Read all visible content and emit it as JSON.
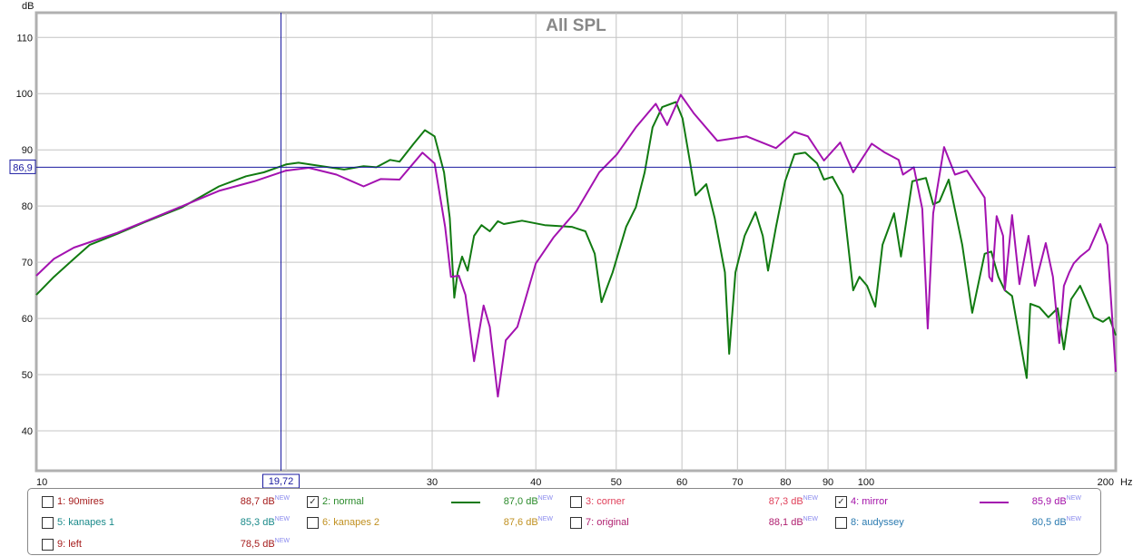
{
  "chart_data": {
    "type": "line",
    "title": "All SPL",
    "ylabel": "dB",
    "xlabel": "Hz",
    "xscale": "log",
    "xlim": [
      10,
      200
    ],
    "ylim": [
      32.9,
      114.4
    ],
    "grid": true,
    "y_ticks": [
      40,
      50,
      60,
      70,
      80,
      90,
      100,
      110
    ],
    "x_ticks": [
      10,
      30,
      40,
      50,
      60,
      70,
      80,
      90,
      100,
      200
    ],
    "x_gridlines": [
      20,
      30,
      40,
      50,
      60,
      70,
      80,
      90,
      100
    ],
    "x_unit_label": "Hz",
    "cursor": {
      "x_label": "19,72",
      "x_value": 19.72,
      "y_label": "86,9",
      "y_value": 86.9
    },
    "series": [
      {
        "name": "2: normal",
        "color": "#117a11",
        "points": [
          [
            10,
            64.2
          ],
          [
            10.5,
            67.4
          ],
          [
            11.1,
            70.6
          ],
          [
            11.6,
            73.1
          ],
          [
            12.5,
            75
          ],
          [
            13.5,
            77.1
          ],
          [
            15,
            79.8
          ],
          [
            16.6,
            83.5
          ],
          [
            17.9,
            85.3
          ],
          [
            18.8,
            86
          ],
          [
            20,
            87.4
          ],
          [
            20.7,
            87.7
          ],
          [
            22.1,
            87.1
          ],
          [
            23.5,
            86.5
          ],
          [
            24.8,
            87.1
          ],
          [
            25.7,
            86.9
          ],
          [
            26.7,
            88.2
          ],
          [
            27.4,
            87.9
          ],
          [
            28.5,
            91.1
          ],
          [
            29.4,
            93.5
          ],
          [
            30.2,
            92.4
          ],
          [
            31.0,
            86
          ],
          [
            31.5,
            77.9
          ],
          [
            31.9,
            63.7
          ],
          [
            32.2,
            68.2
          ],
          [
            32.6,
            71
          ],
          [
            33.1,
            68.5
          ],
          [
            33.7,
            74.7
          ],
          [
            34.4,
            76.6
          ],
          [
            35.2,
            75.5
          ],
          [
            36.0,
            77.3
          ],
          [
            36.6,
            76.8
          ],
          [
            38.5,
            77.4
          ],
          [
            41.0,
            76.6
          ],
          [
            44.2,
            76.3
          ],
          [
            45.9,
            75.5
          ],
          [
            47.1,
            71.5
          ],
          [
            48.0,
            62.9
          ],
          [
            49.5,
            68.2
          ],
          [
            51.4,
            76.3
          ],
          [
            52.8,
            79.8
          ],
          [
            54.1,
            86
          ],
          [
            55.3,
            94
          ],
          [
            56.8,
            97.6
          ],
          [
            59.0,
            98.5
          ],
          [
            60.1,
            95.6
          ],
          [
            61.4,
            87.6
          ],
          [
            62.3,
            81.9
          ],
          [
            64.2,
            83.9
          ],
          [
            65.7,
            77.9
          ],
          [
            67.6,
            68.2
          ],
          [
            68.4,
            53.7
          ],
          [
            69.6,
            68.2
          ],
          [
            71.4,
            74.7
          ],
          [
            73.6,
            78.9
          ],
          [
            75.1,
            74.7
          ],
          [
            76.2,
            68.5
          ],
          [
            77.9,
            76.3
          ],
          [
            79.9,
            84.4
          ],
          [
            82.0,
            89.2
          ],
          [
            84.5,
            89.5
          ],
          [
            87.3,
            87.6
          ],
          [
            89.0,
            84.7
          ],
          [
            91.1,
            85.2
          ],
          [
            93.7,
            81.9
          ],
          [
            96.5,
            65
          ],
          [
            98.2,
            67.4
          ],
          [
            100.3,
            65.8
          ],
          [
            102.6,
            62.1
          ],
          [
            104.7,
            73.1
          ],
          [
            108.1,
            78.7
          ],
          [
            110.2,
            71
          ],
          [
            113.7,
            84.4
          ],
          [
            118.1,
            85
          ],
          [
            120.5,
            80.3
          ],
          [
            122.6,
            80.8
          ],
          [
            125.8,
            84.7
          ],
          [
            130.6,
            73.1
          ],
          [
            134.3,
            61
          ],
          [
            139,
            71.5
          ],
          [
            141.6,
            71.9
          ],
          [
            144.4,
            67.4
          ],
          [
            147,
            65
          ],
          [
            150,
            64
          ],
          [
            156.2,
            49.4
          ],
          [
            157.8,
            62.6
          ],
          [
            161.8,
            62
          ],
          [
            165.9,
            60.2
          ],
          [
            170.2,
            61.8
          ],
          [
            173.2,
            54.5
          ],
          [
            176.7,
            63.4
          ],
          [
            181.2,
            65.8
          ],
          [
            188.2,
            60.2
          ],
          [
            193,
            59.4
          ],
          [
            196.4,
            60.2
          ],
          [
            200,
            57
          ]
        ]
      },
      {
        "name": "4: mirror",
        "color": "#a312b0",
        "points": [
          [
            10,
            67.6
          ],
          [
            10.5,
            70.6
          ],
          [
            11.1,
            72.6
          ],
          [
            12.5,
            75.2
          ],
          [
            15,
            80
          ],
          [
            16.6,
            82.7
          ],
          [
            18.3,
            84.4
          ],
          [
            20,
            86.3
          ],
          [
            21.3,
            86.8
          ],
          [
            23.0,
            85.6
          ],
          [
            24.8,
            83.5
          ],
          [
            26.0,
            84.8
          ],
          [
            27.4,
            84.7
          ],
          [
            29.2,
            89.5
          ],
          [
            30.2,
            87.6
          ],
          [
            31.1,
            76.3
          ],
          [
            31.6,
            67.4
          ],
          [
            32.3,
            67.6
          ],
          [
            32.9,
            64.2
          ],
          [
            33.7,
            52.4
          ],
          [
            34.6,
            62.3
          ],
          [
            35.2,
            58.5
          ],
          [
            36.0,
            46.1
          ],
          [
            36.8,
            56.1
          ],
          [
            38.0,
            58.5
          ],
          [
            40.0,
            69.8
          ],
          [
            42.0,
            74.4
          ],
          [
            44.8,
            79.2
          ],
          [
            47.7,
            86
          ],
          [
            50.1,
            89.2
          ],
          [
            52.8,
            94
          ],
          [
            55.8,
            98.2
          ],
          [
            57.6,
            94.4
          ],
          [
            59.8,
            99.8
          ],
          [
            62.0,
            96.5
          ],
          [
            66.2,
            91.6
          ],
          [
            69.6,
            92.1
          ],
          [
            71.8,
            92.4
          ],
          [
            77.9,
            90.3
          ],
          [
            82.0,
            93.2
          ],
          [
            85.1,
            92.4
          ],
          [
            89.0,
            88.1
          ],
          [
            93.1,
            91.3
          ],
          [
            96.5,
            86
          ],
          [
            101.6,
            91.1
          ],
          [
            105.4,
            89.5
          ],
          [
            109.5,
            88.2
          ],
          [
            110.8,
            85.6
          ],
          [
            114.2,
            86.9
          ],
          [
            116.9,
            79.5
          ],
          [
            118.7,
            58.2
          ],
          [
            120.5,
            78.7
          ],
          [
            124.2,
            90.5
          ],
          [
            128.0,
            85.6
          ],
          [
            132.3,
            86.3
          ],
          [
            139,
            81.5
          ],
          [
            140.8,
            67.4
          ],
          [
            141.9,
            66.6
          ],
          [
            143.7,
            78.2
          ],
          [
            146.3,
            74.7
          ],
          [
            147,
            65
          ],
          [
            150,
            78.4
          ],
          [
            153.1,
            66.1
          ],
          [
            157,
            74.7
          ],
          [
            159.8,
            65.8
          ],
          [
            164.7,
            73.4
          ],
          [
            168,
            67.4
          ],
          [
            171,
            55.6
          ],
          [
            173.2,
            65.8
          ],
          [
            175.8,
            68.2
          ],
          [
            178,
            69.8
          ],
          [
            181.2,
            71
          ],
          [
            185.8,
            72.3
          ],
          [
            191.6,
            76.8
          ],
          [
            195.4,
            73.1
          ],
          [
            200,
            50.5
          ]
        ]
      }
    ]
  },
  "legend": [
    {
      "label": "1: 90mires",
      "value": "88,7 dB",
      "badge": "NEW",
      "checked": false,
      "color": "#a51b1b"
    },
    {
      "label": "2: normal",
      "value": "87,0 dB",
      "badge": "NEW",
      "checked": true,
      "color": "#2a8a2a"
    },
    {
      "label": "3: corner",
      "value": "87,3 dB",
      "badge": "NEW",
      "checked": false,
      "color": "#e0405a"
    },
    {
      "label": "4: mirror",
      "value": "85,9 dB",
      "badge": "NEW",
      "checked": true,
      "color": "#a312a8"
    },
    {
      "label": "5: kanapes 1",
      "value": "85,3 dB",
      "badge": "NEW",
      "checked": false,
      "color": "#1a8a8a"
    },
    {
      "label": "6: kanapes 2",
      "value": "87,6 dB",
      "badge": "NEW",
      "checked": false,
      "color": "#c09020"
    },
    {
      "label": "7: original",
      "value": "88,1 dB",
      "badge": "NEW",
      "checked": false,
      "color": "#b02070"
    },
    {
      "label": "8: audyssey",
      "value": "80,5 dB",
      "badge": "NEW",
      "checked": false,
      "color": "#2a7ab0"
    },
    {
      "label": "9: left",
      "value": "78,5 dB",
      "badge": "NEW",
      "checked": false,
      "color": "#a51b1b"
    }
  ],
  "check_mark": "✓"
}
